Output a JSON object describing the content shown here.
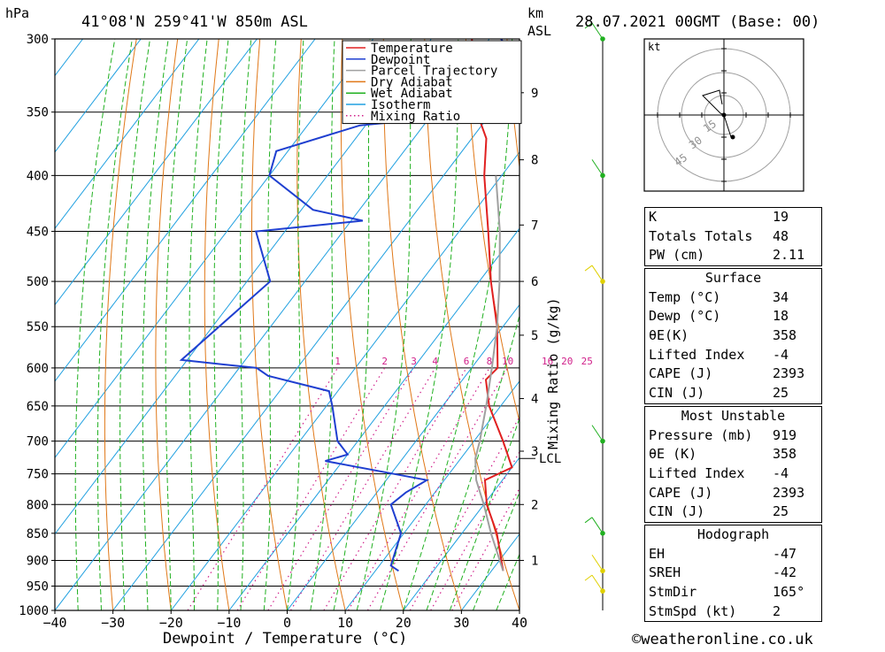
{
  "header": {
    "left_unit": "hPa",
    "location": "41°08'N 259°41'W 850m ASL",
    "right_unit_km": "km",
    "right_unit_asl": "ASL",
    "date": "28.07.2021 00GMT (Base: 00)"
  },
  "footer": {
    "copyright": "©weatheronline.co.uk"
  },
  "chart_data": {
    "type": "line",
    "subtype": "skew-T log-p",
    "xlabel": "Dewpoint / Temperature (°C)",
    "ylabel_right": "Mixing Ratio (g/kg)",
    "x_ticks": [
      -40,
      -30,
      -20,
      -10,
      0,
      10,
      20,
      30,
      40
    ],
    "pressure_ticks": [
      300,
      350,
      400,
      450,
      500,
      550,
      600,
      650,
      700,
      750,
      800,
      850,
      900,
      950,
      1000
    ],
    "height_ticks_km": [
      {
        "km": "1",
        "p": 900
      },
      {
        "km": "2",
        "p": 800
      },
      {
        "km": "3",
        "p": 715
      },
      {
        "km": "4",
        "p": 640
      },
      {
        "km": "5",
        "p": 560
      },
      {
        "km": "6",
        "p": 500
      },
      {
        "km": "7",
        "p": 444
      },
      {
        "km": "8",
        "p": 387
      },
      {
        "km": "9",
        "p": 336
      }
    ],
    "lcl_label": "LCL",
    "lcl_pressure": 726,
    "mixing_ratio_labels": [
      "1",
      "2",
      "3",
      "4",
      "6",
      "8",
      "10",
      "16",
      "20",
      "25"
    ],
    "legend": {
      "entries": [
        {
          "name": "Temperature",
          "color": "#e02020",
          "style": "solid"
        },
        {
          "name": "Dewpoint",
          "color": "#1f3fd0",
          "style": "solid"
        },
        {
          "name": "Parcel Trajectory",
          "color": "#a0a0a0",
          "style": "solid"
        },
        {
          "name": "Dry Adiabat",
          "color": "#e07818",
          "style": "solid"
        },
        {
          "name": "Wet Adiabat",
          "color": "#20b020",
          "style": "solid"
        },
        {
          "name": "Isotherm",
          "color": "#20a0e0",
          "style": "solid"
        },
        {
          "name": "Mixing Ratio",
          "color": "#d0208a",
          "style": "dotted"
        }
      ],
      "placement": "top-right"
    },
    "series": [
      {
        "name": "Temperature",
        "color": "#e02020",
        "points": [
          {
            "p": 920,
            "t": 32
          },
          {
            "p": 850,
            "t": 26
          },
          {
            "p": 800,
            "t": 20.5
          },
          {
            "p": 760,
            "t": 17
          },
          {
            "p": 740,
            "t": 20
          },
          {
            "p": 700,
            "t": 15
          },
          {
            "p": 650,
            "t": 8
          },
          {
            "p": 615,
            "t": 4
          },
          {
            "p": 600,
            "t": 4.5
          },
          {
            "p": 550,
            "t": -1
          },
          {
            "p": 500,
            "t": -8
          },
          {
            "p": 450,
            "t": -15
          },
          {
            "p": 400,
            "t": -23
          },
          {
            "p": 370,
            "t": -27.5
          },
          {
            "p": 360,
            "t": -30
          },
          {
            "p": 340,
            "t": -35
          },
          {
            "p": 320,
            "t": -39
          },
          {
            "p": 300,
            "t": -43
          }
        ]
      },
      {
        "name": "Dewpoint",
        "color": "#1f3fd0",
        "points": [
          {
            "p": 920,
            "t": 14
          },
          {
            "p": 910,
            "t": 12
          },
          {
            "p": 850,
            "t": 9.5
          },
          {
            "p": 800,
            "t": 4
          },
          {
            "p": 780,
            "t": 5
          },
          {
            "p": 760,
            "t": 7
          },
          {
            "p": 730,
            "t": -13
          },
          {
            "p": 720,
            "t": -10
          },
          {
            "p": 700,
            "t": -13.5
          },
          {
            "p": 650,
            "t": -19
          },
          {
            "p": 630,
            "t": -21.5
          },
          {
            "p": 610,
            "t": -34
          },
          {
            "p": 600,
            "t": -37
          },
          {
            "p": 590,
            "t": -51
          },
          {
            "p": 500,
            "t": -46
          },
          {
            "p": 450,
            "t": -55
          },
          {
            "p": 440,
            "t": -38
          },
          {
            "p": 430,
            "t": -48
          },
          {
            "p": 400,
            "t": -60
          },
          {
            "p": 380,
            "t": -62
          },
          {
            "p": 360,
            "t": -51
          },
          {
            "p": 355,
            "t": -40
          },
          {
            "p": 345,
            "t": -52
          },
          {
            "p": 320,
            "t": -30
          },
          {
            "p": 300,
            "t": -38
          }
        ]
      },
      {
        "name": "Parcel Trajectory",
        "color": "#a0a0a0",
        "points": [
          {
            "p": 920,
            "t": 32
          },
          {
            "p": 850,
            "t": 25
          },
          {
            "p": 800,
            "t": 20
          },
          {
            "p": 760,
            "t": 15.5
          },
          {
            "p": 726,
            "t": 12.5
          },
          {
            "p": 700,
            "t": 11
          },
          {
            "p": 650,
            "t": 7.5
          },
          {
            "p": 600,
            "t": 3.5
          },
          {
            "p": 550,
            "t": -1
          },
          {
            "p": 500,
            "t": -6.5
          },
          {
            "p": 450,
            "t": -13
          },
          {
            "p": 400,
            "t": -21
          }
        ]
      }
    ],
    "wind_barbs": [
      {
        "p": 300,
        "color": "#20b020"
      },
      {
        "p": 400,
        "color": "#20b020"
      },
      {
        "p": 500,
        "color": "#e0d000"
      },
      {
        "p": 700,
        "color": "#20b020"
      },
      {
        "p": 850,
        "color": "#20b020"
      },
      {
        "p": 920,
        "color": "#e0d000"
      },
      {
        "p": 960,
        "color": "#e0d000"
      }
    ],
    "hodograph": {
      "unit": "kt",
      "ring_labels": [
        "15",
        "30",
        "45"
      ]
    }
  },
  "indices": {
    "general": [
      {
        "label": "K",
        "value": "19"
      },
      {
        "label": "Totals Totals",
        "value": "48"
      },
      {
        "label": "PW (cm)",
        "value": "2.11"
      }
    ],
    "surface": {
      "title": "Surface",
      "rows": [
        {
          "label": "Temp (°C)",
          "value": "34"
        },
        {
          "label": "Dewp (°C)",
          "value": "18"
        },
        {
          "label": "θE(K)",
          "value": "358"
        },
        {
          "label": "Lifted Index",
          "value": "-4"
        },
        {
          "label": "CAPE (J)",
          "value": "2393"
        },
        {
          "label": "CIN (J)",
          "value": "25"
        }
      ]
    },
    "most_unstable": {
      "title": "Most Unstable",
      "rows": [
        {
          "label": "Pressure (mb)",
          "value": "919"
        },
        {
          "label": "θE (K)",
          "value": "358"
        },
        {
          "label": "Lifted Index",
          "value": "-4"
        },
        {
          "label": "CAPE (J)",
          "value": "2393"
        },
        {
          "label": "CIN (J)",
          "value": "25"
        }
      ]
    },
    "hodograph": {
      "title": "Hodograph",
      "rows": [
        {
          "label": "EH",
          "value": "-47"
        },
        {
          "label": "SREH",
          "value": "-42"
        },
        {
          "label": "StmDir",
          "value": "165°"
        },
        {
          "label": "StmSpd (kt)",
          "value": "2"
        }
      ]
    }
  }
}
